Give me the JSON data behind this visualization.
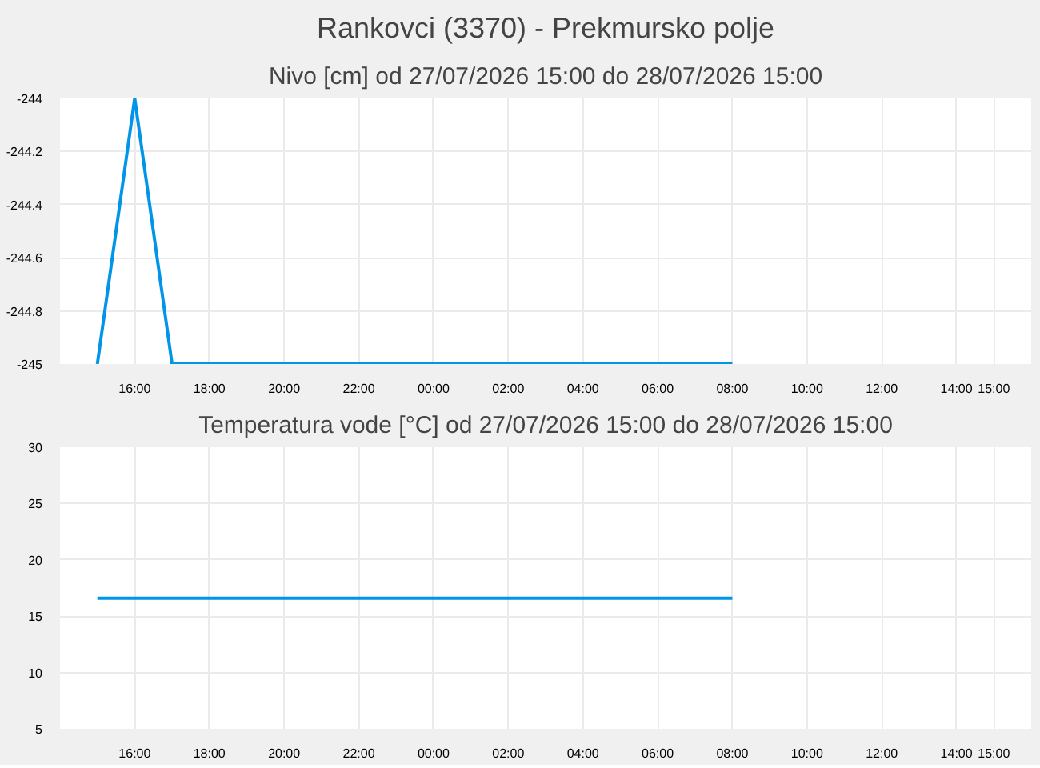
{
  "chart_data": [
    {
      "type": "line",
      "title": "Rankovci (3370) - Prekmursko polje",
      "subtitle": "Nivo [cm] od 27/07/2026 15:00 do 28/07/2026 15:00",
      "x": [
        "2026-07-27T15:00",
        "2026-07-27T16:00",
        "2026-07-27T17:00",
        "2026-07-28T08:00"
      ],
      "series": [
        {
          "color": "#0095e8",
          "values": [
            -245,
            -244,
            -245,
            -245
          ]
        }
      ],
      "xlim": [
        "2026-07-27T14:00",
        "2026-07-28T16:00"
      ],
      "ylim": [
        -245,
        -244
      ],
      "xticks": [
        {
          "value": "2026-07-27T16:00",
          "label": "16:00"
        },
        {
          "value": "2026-07-27T18:00",
          "label": "18:00"
        },
        {
          "value": "2026-07-27T20:00",
          "label": "20:00"
        },
        {
          "value": "2026-07-27T22:00",
          "label": "22:00"
        },
        {
          "value": "2026-07-28T00:00",
          "label": "00:00"
        },
        {
          "value": "2026-07-28T02:00",
          "label": "02:00"
        },
        {
          "value": "2026-07-28T04:00",
          "label": "04:00"
        },
        {
          "value": "2026-07-28T06:00",
          "label": "06:00"
        },
        {
          "value": "2026-07-28T08:00",
          "label": "08:00"
        },
        {
          "value": "2026-07-28T10:00",
          "label": "10:00"
        },
        {
          "value": "2026-07-28T12:00",
          "label": "12:00"
        },
        {
          "value": "2026-07-28T14:00",
          "label": "14:00"
        },
        {
          "value": "2026-07-28T15:00",
          "label": "15:00"
        }
      ],
      "yticks": [
        -245,
        -244.8,
        -244.6,
        -244.4,
        -244.2,
        -244
      ],
      "grid": true
    },
    {
      "type": "line",
      "title": "Temperatura vode [°C] od 27/07/2026 15:00 do 28/07/2026 15:00",
      "x": [
        "2026-07-27T15:00",
        "2026-07-28T08:00"
      ],
      "series": [
        {
          "color": "#0095e8",
          "values": [
            16.6,
            16.6
          ]
        }
      ],
      "xlim": [
        "2026-07-27T14:00",
        "2026-07-28T16:00"
      ],
      "ylim": [
        5,
        30
      ],
      "xticks": [
        {
          "value": "2026-07-27T16:00",
          "label": "16:00"
        },
        {
          "value": "2026-07-27T18:00",
          "label": "18:00"
        },
        {
          "value": "2026-07-27T20:00",
          "label": "20:00"
        },
        {
          "value": "2026-07-27T22:00",
          "label": "22:00"
        },
        {
          "value": "2026-07-28T00:00",
          "label": "00:00"
        },
        {
          "value": "2026-07-28T02:00",
          "label": "02:00"
        },
        {
          "value": "2026-07-28T04:00",
          "label": "04:00"
        },
        {
          "value": "2026-07-28T06:00",
          "label": "06:00"
        },
        {
          "value": "2026-07-28T08:00",
          "label": "08:00"
        },
        {
          "value": "2026-07-28T10:00",
          "label": "10:00"
        },
        {
          "value": "2026-07-28T12:00",
          "label": "12:00"
        },
        {
          "value": "2026-07-28T14:00",
          "label": "14:00"
        },
        {
          "value": "2026-07-28T15:00",
          "label": "15:00"
        }
      ],
      "yticks": [
        5,
        10,
        15,
        20,
        25,
        30
      ],
      "grid": true
    }
  ]
}
